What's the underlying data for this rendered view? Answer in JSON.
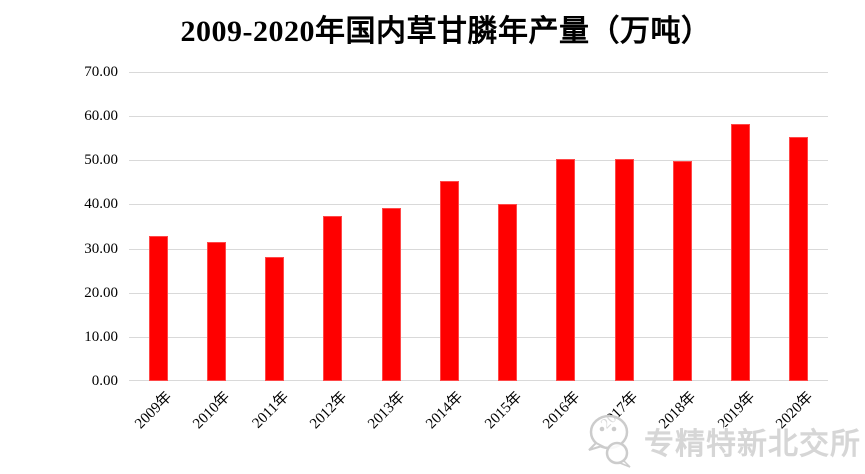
{
  "watermark": {
    "text": "专精特新北交所",
    "icon": "wechat-logo-icon"
  },
  "colors": {
    "bar": "#ff0000",
    "gridline": "#d9d9d9",
    "text": "#000000",
    "watermark": "#d6d6d6",
    "background": "#ffffff"
  },
  "chart_data": {
    "type": "bar",
    "title": "2009-2020年国内草甘膦年产量（万吨）",
    "categories": [
      "2009年",
      "2010年",
      "2011年",
      "2012年",
      "2013年",
      "2014年",
      "2015年",
      "2016年",
      "2017年",
      "2018年",
      "2019年",
      "2020年"
    ],
    "values": [
      32.8,
      31.6,
      28.0,
      37.3,
      39.1,
      45.2,
      40.1,
      50.4,
      50.4,
      49.8,
      58.2,
      55.3
    ],
    "xlabel": "",
    "ylabel": "",
    "ylim": [
      0,
      70
    ],
    "ytick_step": 10,
    "ytick_labels": [
      "0.00",
      "10.00",
      "20.00",
      "30.00",
      "40.00",
      "50.00",
      "60.00",
      "70.00"
    ],
    "grid": true,
    "legend": false,
    "bar_color": "#ff0000"
  }
}
